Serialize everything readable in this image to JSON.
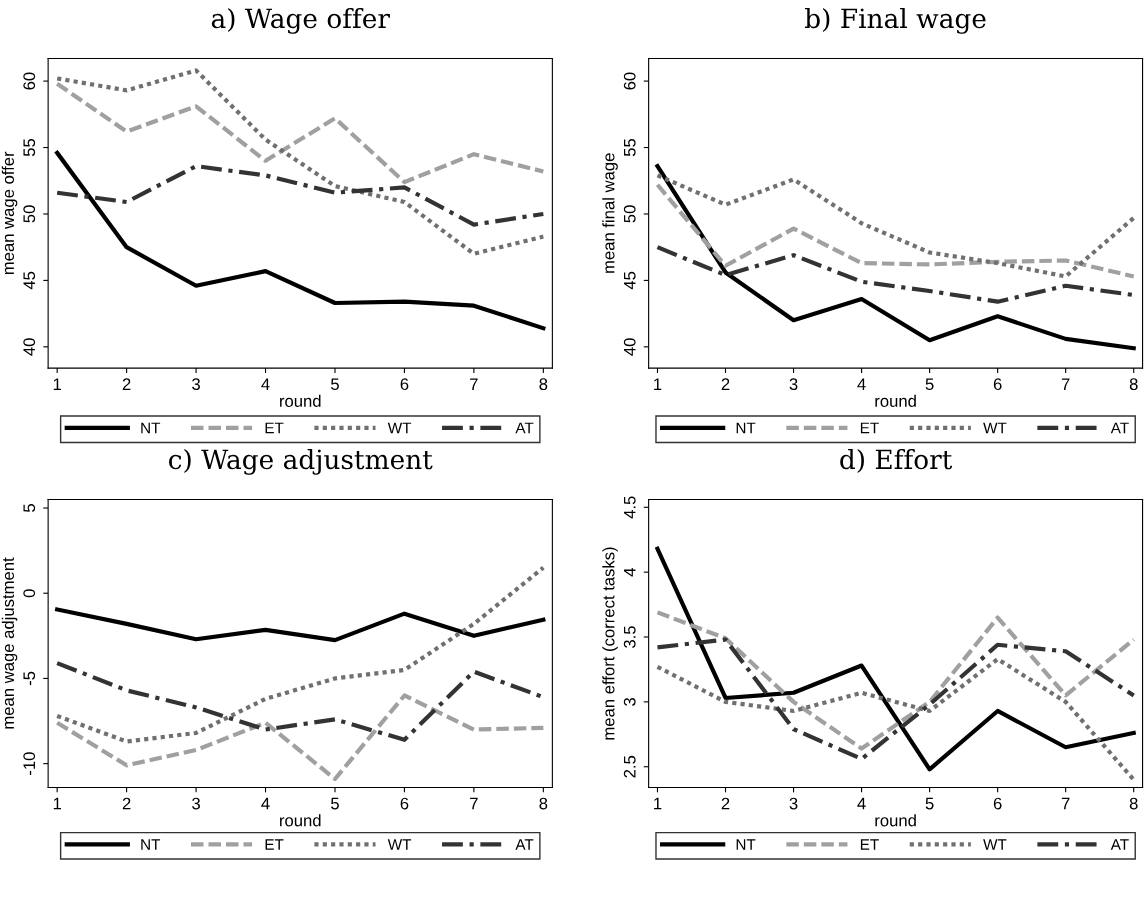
{
  "chart_data": [
    {
      "type": "line",
      "title": "a) Wage offer",
      "xlabel": "round",
      "ylabel": "mean wage offer",
      "x": [
        1,
        2,
        3,
        4,
        5,
        6,
        7,
        8
      ],
      "xlim": [
        0.87,
        8.13
      ],
      "xticks": [
        1,
        2,
        3,
        4,
        5,
        6,
        7,
        8
      ],
      "ylim": [
        38.4,
        61.7
      ],
      "yticks": [
        40,
        45,
        50,
        55,
        60
      ],
      "grid": false,
      "legend": "bottom",
      "series": [
        {
          "name": "NT",
          "color": "#000000",
          "line_style": "solid",
          "values": [
            54.6,
            47.5,
            44.6,
            45.7,
            43.3,
            43.4,
            43.1,
            41.4
          ]
        },
        {
          "name": "ET",
          "color": "#a0a0a0",
          "line_style": "dashed",
          "values": [
            59.8,
            56.2,
            58.1,
            54.0,
            57.2,
            52.4,
            54.5,
            53.2
          ]
        },
        {
          "name": "WT",
          "color": "#707070",
          "line_style": "dotted",
          "values": [
            60.2,
            59.3,
            60.8,
            55.6,
            52.1,
            50.9,
            47.0,
            48.3
          ]
        },
        {
          "name": "AT",
          "color": "#333333",
          "line_style": "dashdot",
          "values": [
            51.6,
            50.9,
            53.6,
            52.9,
            51.6,
            52.0,
            49.2,
            50.0
          ]
        }
      ]
    },
    {
      "type": "line",
      "title": "b) Final wage",
      "xlabel": "round",
      "ylabel": "mean final wage",
      "x": [
        1,
        2,
        3,
        4,
        5,
        6,
        7,
        8
      ],
      "xlim": [
        0.87,
        8.13
      ],
      "xticks": [
        1,
        2,
        3,
        4,
        5,
        6,
        7,
        8
      ],
      "ylim": [
        38.4,
        61.7
      ],
      "yticks": [
        40,
        45,
        50,
        55,
        60
      ],
      "grid": false,
      "legend": "bottom",
      "series": [
        {
          "name": "NT",
          "color": "#000000",
          "line_style": "solid",
          "values": [
            53.6,
            45.6,
            42.0,
            43.6,
            40.5,
            42.3,
            40.6,
            39.9
          ]
        },
        {
          "name": "ET",
          "color": "#a0a0a0",
          "line_style": "dashed",
          "values": [
            52.2,
            46.1,
            48.9,
            46.3,
            46.2,
            46.4,
            46.5,
            45.3
          ]
        },
        {
          "name": "WT",
          "color": "#707070",
          "line_style": "dotted",
          "values": [
            52.9,
            50.7,
            52.6,
            49.3,
            47.1,
            46.3,
            45.3,
            49.7
          ]
        },
        {
          "name": "AT",
          "color": "#333333",
          "line_style": "dashdot",
          "values": [
            47.5,
            45.4,
            46.9,
            44.9,
            44.2,
            43.4,
            44.6,
            43.9
          ]
        }
      ]
    },
    {
      "type": "line",
      "title": "c) Wage adjustment",
      "xlabel": "round",
      "ylabel": "mean wage adjustment",
      "x": [
        1,
        2,
        3,
        4,
        5,
        6,
        7,
        8
      ],
      "xlim": [
        0.87,
        8.13
      ],
      "xticks": [
        1,
        2,
        3,
        4,
        5,
        6,
        7,
        8
      ],
      "ylim": [
        -11.4,
        5.5
      ],
      "yticks": [
        {
          "value": -10,
          "label": "-10"
        },
        {
          "value": -5,
          "label": "-5"
        },
        0,
        5
      ],
      "grid": false,
      "legend": "bottom",
      "series": [
        {
          "name": "NT",
          "color": "#000000",
          "line_style": "solid",
          "values": [
            -0.95,
            -1.8,
            -2.7,
            -2.15,
            -2.75,
            -1.2,
            -2.5,
            -1.55
          ]
        },
        {
          "name": "ET",
          "color": "#a0a0a0",
          "line_style": "dashed",
          "values": [
            -7.6,
            -10.1,
            -9.2,
            -7.6,
            -10.9,
            -6.0,
            -8.0,
            -7.9
          ]
        },
        {
          "name": "WT",
          "color": "#707070",
          "line_style": "dotted",
          "values": [
            -7.2,
            -8.7,
            -8.2,
            -6.2,
            -5.0,
            -4.5,
            -1.8,
            1.5
          ]
        },
        {
          "name": "AT",
          "color": "#333333",
          "line_style": "dashdot",
          "values": [
            -4.1,
            -5.7,
            -6.7,
            -8.0,
            -7.4,
            -8.6,
            -4.6,
            -6.1
          ]
        }
      ]
    },
    {
      "type": "line",
      "title": "d) Effort",
      "xlabel": "round",
      "ylabel": "mean effort (correct tasks)",
      "x": [
        1,
        2,
        3,
        4,
        5,
        6,
        7,
        8
      ],
      "xlim": [
        0.87,
        8.13
      ],
      "xticks": [
        1,
        2,
        3,
        4,
        5,
        6,
        7,
        8
      ],
      "ylim": [
        2.34,
        4.56
      ],
      "yticks": [
        2.5,
        3,
        3.5,
        4,
        4.5
      ],
      "grid": false,
      "legend": "bottom",
      "series": [
        {
          "name": "NT",
          "color": "#000000",
          "line_style": "solid",
          "values": [
            4.18,
            3.03,
            3.07,
            3.28,
            2.48,
            2.93,
            2.65,
            2.76
          ]
        },
        {
          "name": "ET",
          "color": "#a0a0a0",
          "line_style": "dashed",
          "values": [
            3.69,
            3.49,
            3.0,
            2.64,
            3.0,
            3.65,
            3.05,
            3.48
          ]
        },
        {
          "name": "WT",
          "color": "#707070",
          "line_style": "dotted",
          "values": [
            3.27,
            3.0,
            2.93,
            3.07,
            2.93,
            3.33,
            3.0,
            2.4
          ]
        },
        {
          "name": "AT",
          "color": "#333333",
          "line_style": "dashdot",
          "values": [
            3.42,
            3.48,
            2.79,
            2.56,
            2.98,
            3.44,
            3.39,
            3.05
          ]
        }
      ]
    }
  ]
}
